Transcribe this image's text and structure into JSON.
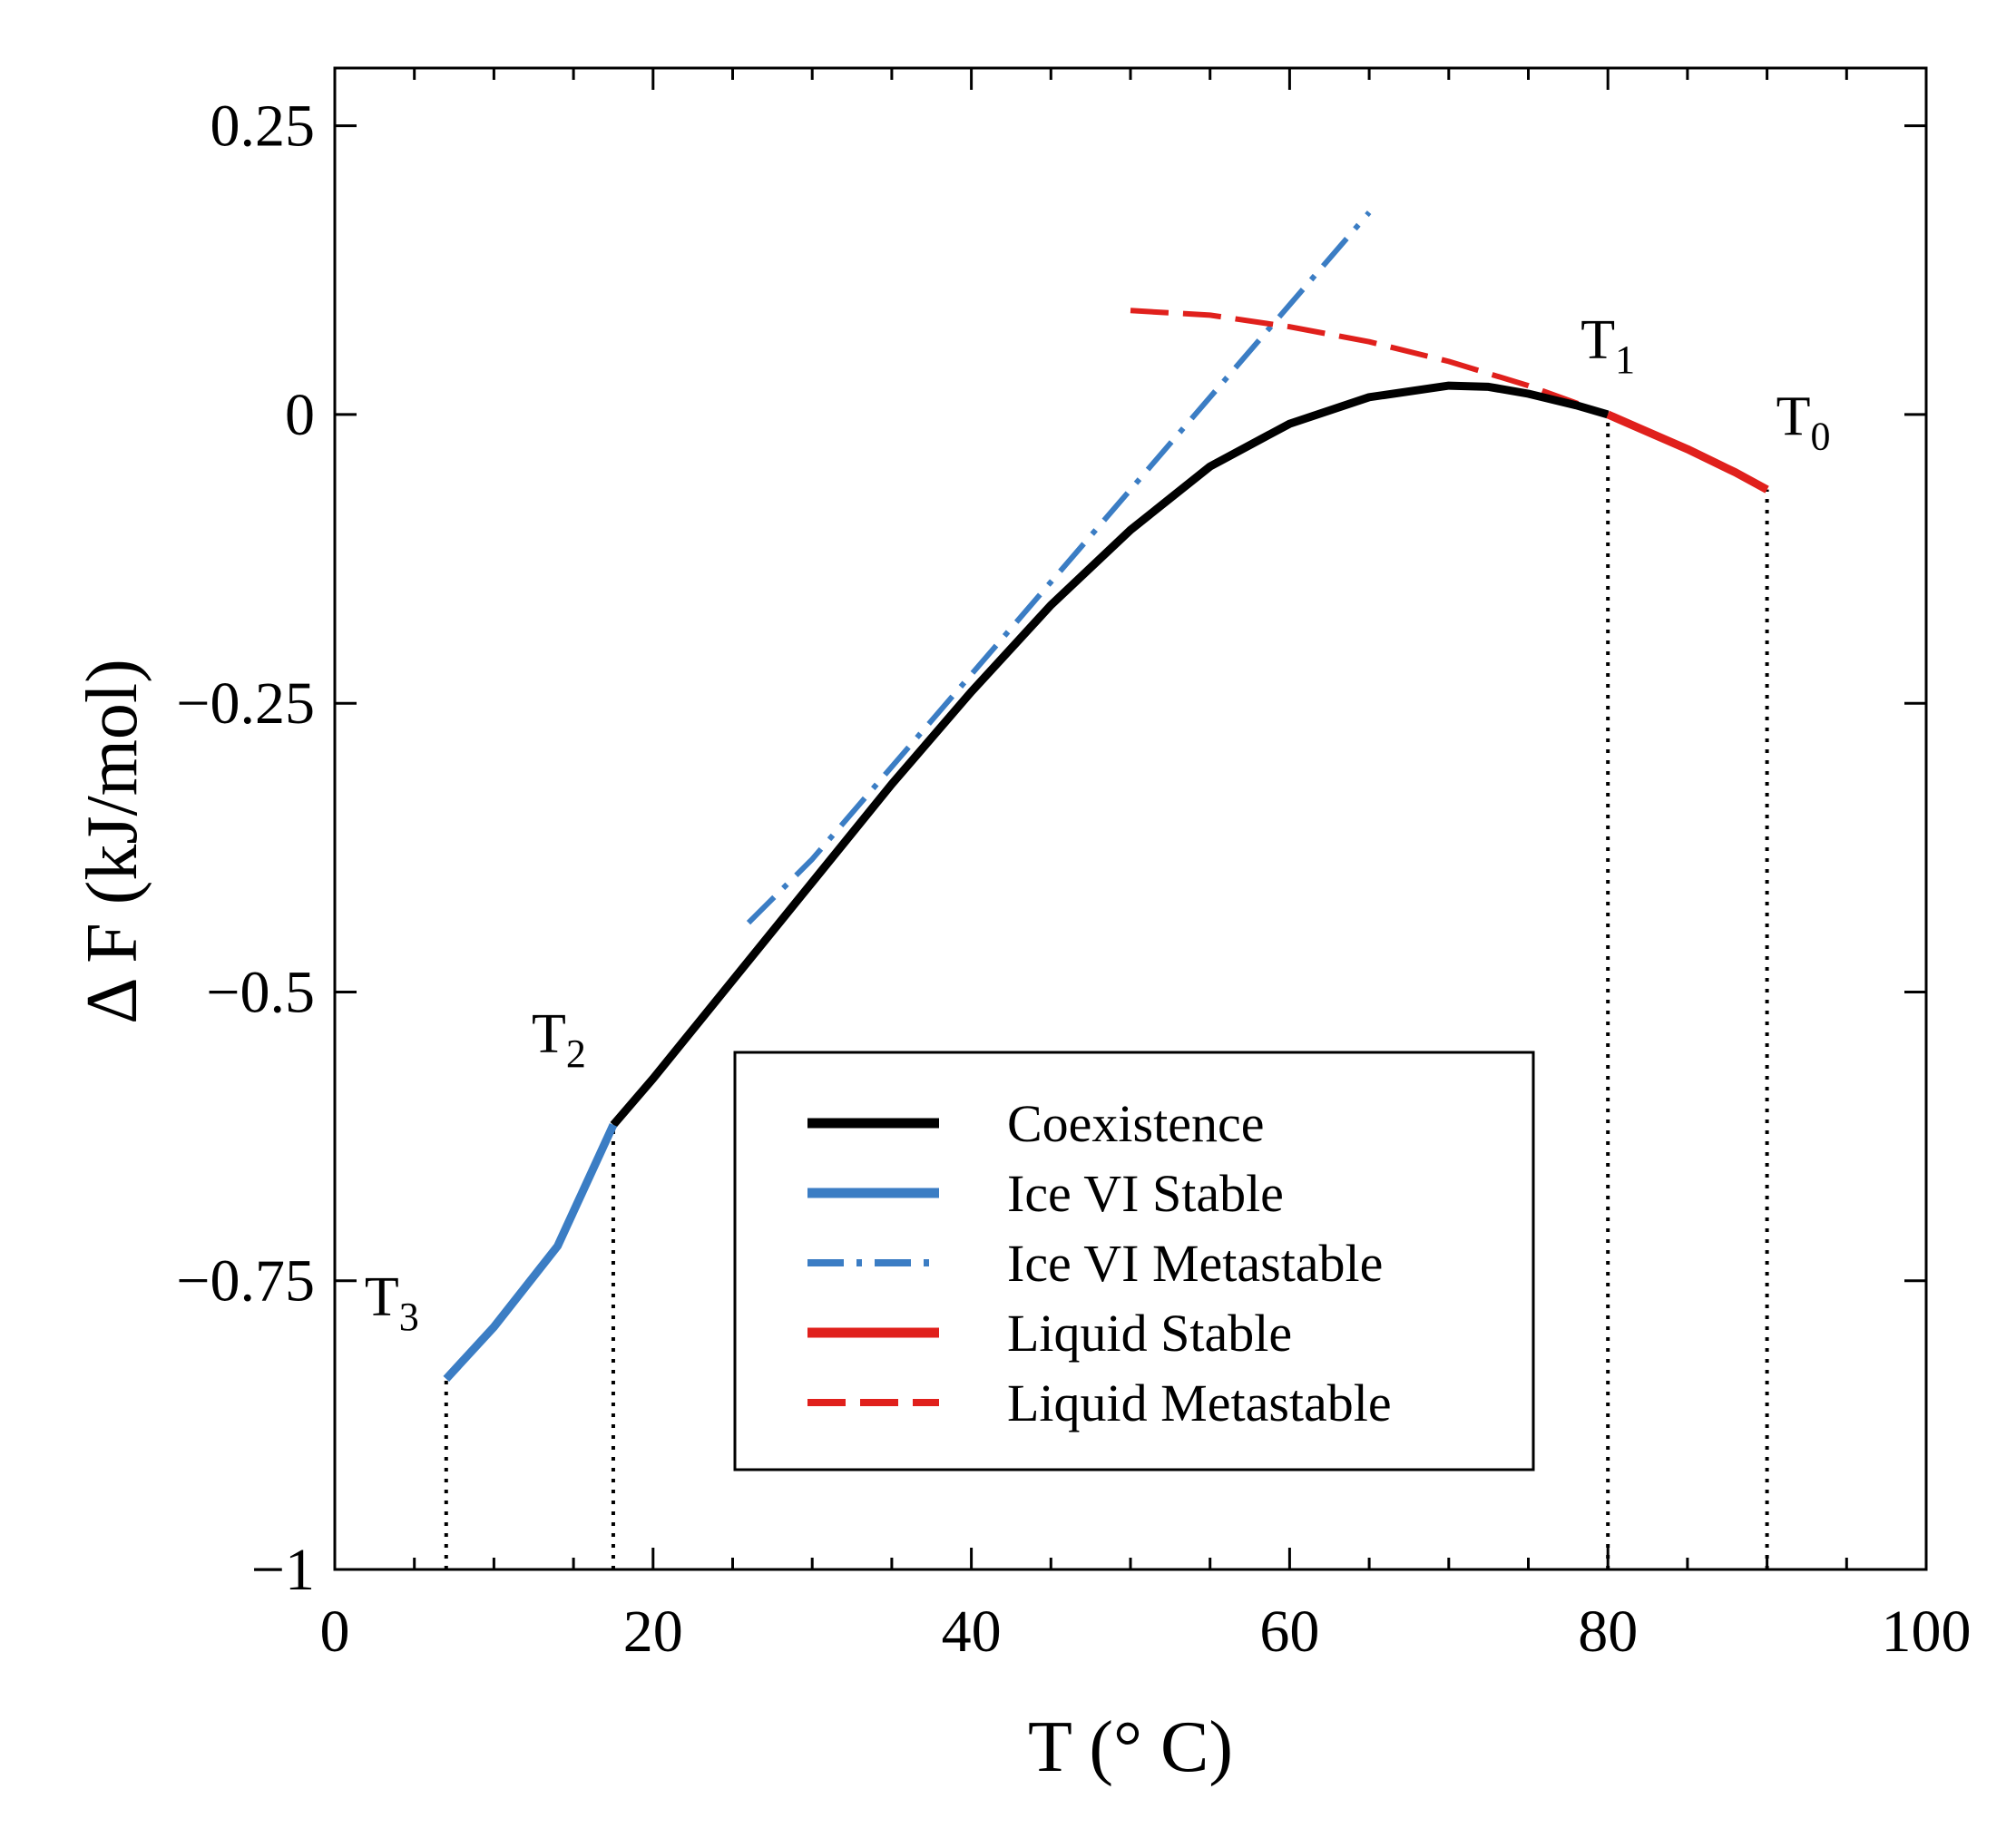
{
  "chart_data": {
    "type": "line",
    "xlabel": "T (° C)",
    "ylabel": "Δ F (kJ/mol)",
    "xlim": [
      0,
      100
    ],
    "ylim": [
      -1,
      0.3
    ],
    "x_ticks": [
      0,
      20,
      40,
      60,
      80,
      100
    ],
    "y_ticks": [
      -1,
      -0.75,
      -0.5,
      -0.25,
      0,
      0.25
    ],
    "x_tick_labels": [
      "0",
      "20",
      "40",
      "60",
      "80",
      "100"
    ],
    "y_tick_labels": [
      "−1",
      "−0.75",
      "−0.5",
      "−0.25",
      "0",
      "0.25"
    ],
    "grid": false,
    "legend_placement": "lower-right",
    "series": [
      {
        "name": "Coexistence",
        "color": "#000000",
        "style": "solid",
        "points": [
          [
            17.5,
            -0.615
          ],
          [
            20,
            -0.575
          ],
          [
            25,
            -0.49
          ],
          [
            30,
            -0.405
          ],
          [
            35,
            -0.32
          ],
          [
            40,
            -0.24
          ],
          [
            45,
            -0.165
          ],
          [
            50,
            -0.1
          ],
          [
            55,
            -0.045
          ],
          [
            60,
            -0.008
          ],
          [
            65,
            0.015
          ],
          [
            70,
            0.025
          ],
          [
            72.5,
            0.024
          ],
          [
            75,
            0.018
          ],
          [
            78,
            0.008
          ],
          [
            80,
            0.0
          ]
        ]
      },
      {
        "name": "Ice VI Stable",
        "color": "#3b7dc4",
        "style": "solid",
        "points": [
          [
            7,
            -0.835
          ],
          [
            10,
            -0.79
          ],
          [
            14,
            -0.72
          ],
          [
            17.5,
            -0.615
          ]
        ]
      },
      {
        "name": "Ice VI Metastable",
        "color": "#3b7dc4",
        "style": "dashdot",
        "points": [
          [
            26,
            -0.44
          ],
          [
            30,
            -0.385
          ],
          [
            35,
            -0.305
          ],
          [
            40,
            -0.225
          ],
          [
            45,
            -0.145
          ],
          [
            50,
            -0.065
          ],
          [
            55,
            0.015
          ],
          [
            60,
            0.095
          ],
          [
            65,
            0.175
          ]
        ]
      },
      {
        "name": "Liquid Stable",
        "color": "#e0201c",
        "style": "solid",
        "points": [
          [
            80,
            0.0
          ],
          [
            82,
            -0.012
          ],
          [
            85,
            -0.03
          ],
          [
            88,
            -0.05
          ],
          [
            90,
            -0.065
          ]
        ]
      },
      {
        "name": "Liquid Metastable",
        "color": "#e0201c",
        "style": "dashed",
        "points": [
          [
            50,
            0.09
          ],
          [
            55,
            0.086
          ],
          [
            60,
            0.076
          ],
          [
            65,
            0.063
          ],
          [
            70,
            0.046
          ],
          [
            75,
            0.025
          ],
          [
            80,
            0.0
          ]
        ]
      }
    ],
    "reference_lines": [
      {
        "x": 7,
        "y_top": -0.835
      },
      {
        "x": 17.5,
        "y_top": -0.615
      },
      {
        "x": 80,
        "y_top": 0.0
      },
      {
        "x": 90,
        "y_top": -0.065
      }
    ],
    "annotations": [
      {
        "text": "T",
        "sub": "3",
        "x": 7,
        "y": -0.835
      },
      {
        "text": "T",
        "sub": "2",
        "x": 17.5,
        "y": -0.615
      },
      {
        "text": "T",
        "sub": "1",
        "x": 80,
        "y": 0.0
      },
      {
        "text": "T",
        "sub": "0",
        "x": 90,
        "y": -0.065
      }
    ]
  }
}
